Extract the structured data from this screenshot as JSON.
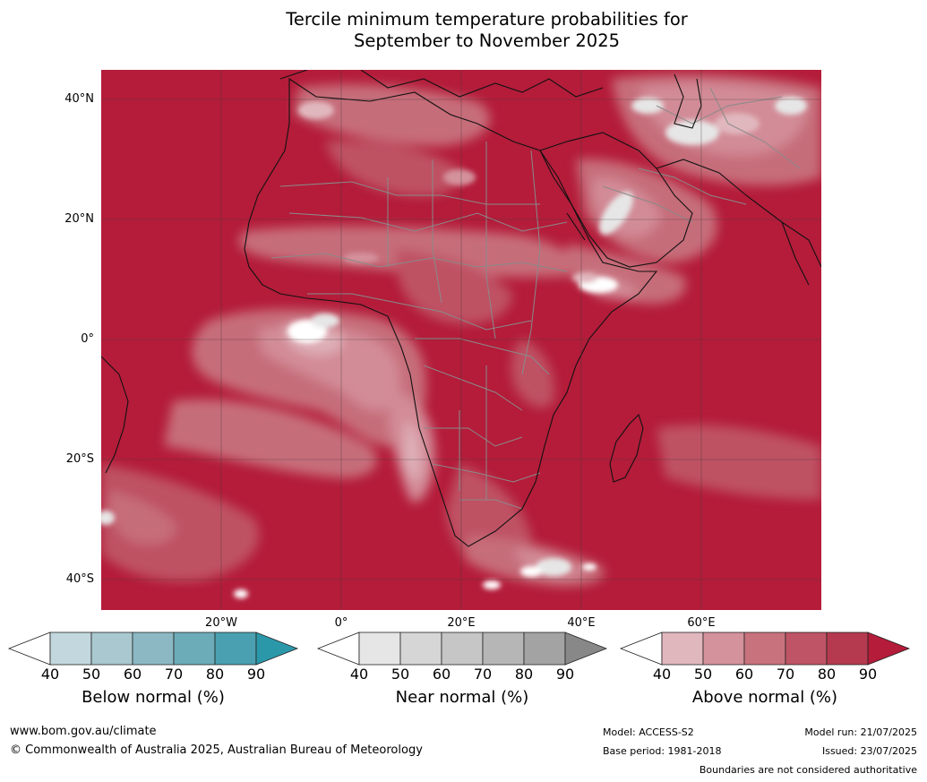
{
  "title": {
    "line1": "Tercile minimum temperature probabilities for",
    "line2": "September to November 2025"
  },
  "map": {
    "lat_labels": [
      "40°N",
      "20°N",
      "0°",
      "20°S",
      "40°S"
    ],
    "lon_labels": [
      "20°W",
      "0°",
      "20°E",
      "40°E",
      "60°E"
    ],
    "background_color": "#b41c3a"
  },
  "legends": [
    {
      "title": "Below normal (%)",
      "ticks": [
        "40",
        "50",
        "60",
        "70",
        "80",
        "90"
      ],
      "colors": [
        "#ffffff",
        "#c2d8de",
        "#a9c8cf",
        "#8bb8c3",
        "#6cacb9",
        "#4aa0b0",
        "#2b98aa"
      ]
    },
    {
      "title": "Near normal (%)",
      "ticks": [
        "40",
        "50",
        "60",
        "70",
        "80",
        "90"
      ],
      "colors": [
        "#ffffff",
        "#e6e6e6",
        "#d6d6d6",
        "#c6c6c6",
        "#b6b6b6",
        "#a3a3a3",
        "#888888"
      ]
    },
    {
      "title": "Above normal (%)",
      "ticks": [
        "40",
        "50",
        "60",
        "70",
        "80",
        "90"
      ],
      "colors": [
        "#ffffff",
        "#e1b7be",
        "#d4929c",
        "#c8727e",
        "#bf5466",
        "#b53a4f",
        "#b41c3a"
      ]
    }
  ],
  "footer": {
    "website": "www.bom.gov.au/climate",
    "copyright": "© Commonwealth of Australia 2025, Australian Bureau of Meteorology",
    "model": "Model: ACCESS-S2",
    "base_period": "Base period: 1981-2018",
    "model_run": "Model run: 21/07/2025",
    "issued": "Issued: 23/07/2025",
    "boundaries": "Boundaries are not considered authoritative"
  },
  "icons": {
    "map": "africa-probability-map"
  }
}
